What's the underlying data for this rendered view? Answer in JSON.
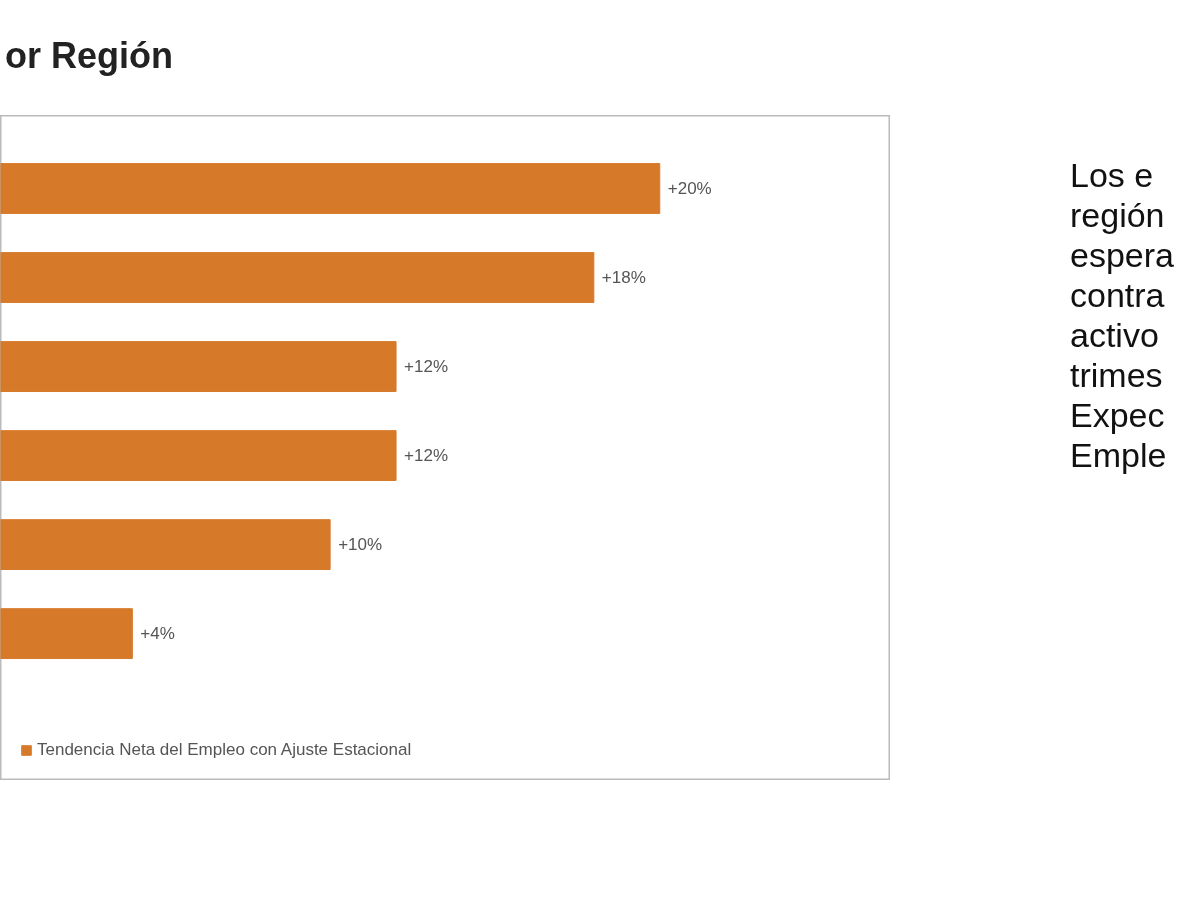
{
  "chart_data": {
    "type": "bar",
    "orientation": "horizontal",
    "title": "or Región",
    "categories": [
      null,
      null,
      null,
      null,
      null,
      null
    ],
    "series": [
      {
        "name": "Tendencia Neta del Empleo con Ajuste Estacional",
        "color": "#d67a2a",
        "values": [
          20,
          18,
          12,
          12,
          10,
          4
        ],
        "value_labels": [
          "+20%",
          "+18%",
          "+12%",
          "+12%",
          "+10%",
          "+4%"
        ]
      }
    ],
    "legend": "bottom",
    "grid": false,
    "annotations": [
      "Los e",
      "región",
      "espera",
      "contra",
      "activo",
      "trimes",
      "Expec",
      "Emple"
    ]
  }
}
